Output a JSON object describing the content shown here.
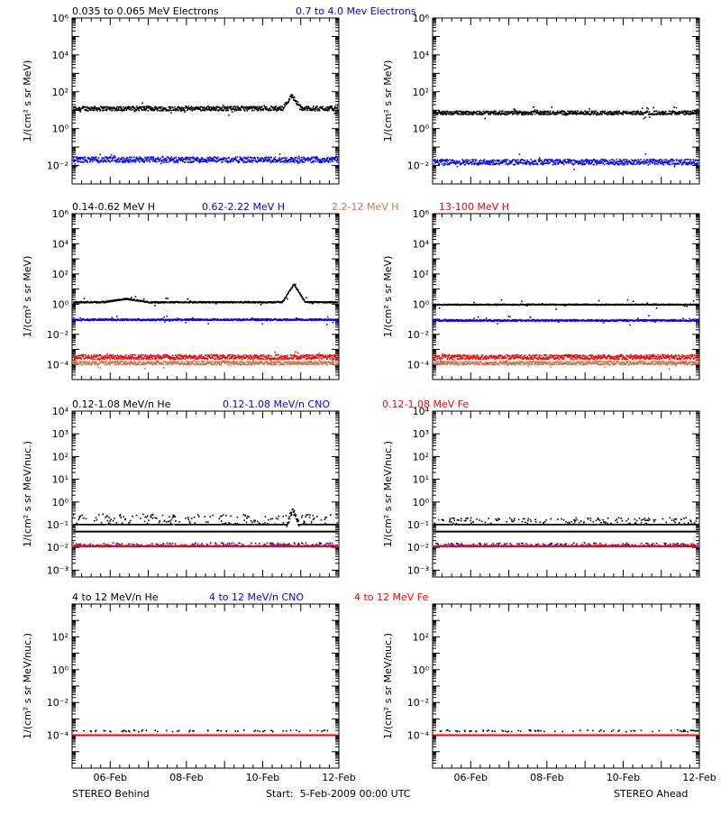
{
  "figure": {
    "footer_left": "STEREO Behind",
    "footer_center": "Start:  5-Feb-2009 00:00 UTC",
    "footer_right": "STEREO Ahead"
  },
  "chart_data": [
    {
      "type": "scatter",
      "panel": "Electrons - STEREO Behind",
      "ylabel": "1/(cm² s sr MeV)",
      "yscale": "log",
      "ylim": [
        0.001,
        1000000
      ],
      "yticks": [
        0.01,
        1,
        100,
        10000,
        1000000
      ],
      "ytick_labels": [
        "10⁻²",
        "10⁰",
        "10²",
        "10⁴",
        "10⁶"
      ],
      "x_range_days": [
        5.0,
        12.0
      ],
      "xticks": [
        "06-Feb",
        "08-Feb",
        "10-Feb",
        "12-Feb"
      ],
      "legend": [
        {
          "name": "0.035 to 0.065 MeV Electrons",
          "color": "#000000"
        },
        {
          "name": "0.7 to 4.0 Mev Electrons",
          "color": "#0000ff"
        }
      ],
      "series": [
        {
          "name": "0.035 to 0.065 MeV Electrons",
          "color": "#000000",
          "baseline": 12,
          "scatter_decades": 0.12,
          "features": [
            {
              "x_start": 10.5,
              "x_end": 11.0,
              "peak": 60
            }
          ]
        },
        {
          "name": "0.7 to 4.0 Mev Electrons",
          "color": "#0000ff",
          "baseline": 0.02,
          "scatter_decades": 0.15,
          "features": []
        }
      ]
    },
    {
      "type": "scatter",
      "panel": "Electrons - STEREO Ahead",
      "ylabel": "1/(cm² s sr MeV)",
      "yscale": "log",
      "ylim": [
        0.001,
        1000000
      ],
      "yticks": [
        0.01,
        1,
        100,
        10000,
        1000000
      ],
      "ytick_labels": [
        "10⁻²",
        "10⁰",
        "10²",
        "10⁴",
        "10⁶"
      ],
      "x_range_days": [
        5.0,
        12.0
      ],
      "xticks": [
        "06-Feb",
        "08-Feb",
        "10-Feb",
        "12-Feb"
      ],
      "legend": [],
      "series": [
        {
          "name": "0.035 to 0.065 MeV Electrons",
          "color": "#000000",
          "baseline": 7,
          "scatter_decades": 0.1,
          "features": []
        },
        {
          "name": "0.7 to 4.0 Mev Electrons",
          "color": "#0000ff",
          "baseline": 0.015,
          "scatter_decades": 0.15,
          "features": []
        }
      ]
    },
    {
      "type": "scatter",
      "panel": "Protons - STEREO Behind",
      "ylabel": "1/(cm² s sr MeV)",
      "yscale": "log",
      "ylim": [
        1e-05,
        1000000
      ],
      "yticks": [
        0.0001,
        0.01,
        1,
        100,
        10000,
        1000000
      ],
      "ytick_labels": [
        "10⁻⁴",
        "10⁻²",
        "10⁰",
        "10²",
        "10⁴",
        "10⁶"
      ],
      "x_range_days": [
        5.0,
        12.0
      ],
      "xticks": [
        "06-Feb",
        "08-Feb",
        "10-Feb",
        "12-Feb"
      ],
      "legend": [
        {
          "name": "0.14-0.62 MeV H",
          "color": "#000000"
        },
        {
          "name": "0.62-2.22 MeV H",
          "color": "#0000ff"
        },
        {
          "name": "2.2-12 MeV H",
          "color": "#c87850"
        },
        {
          "name": "13-100 MeV H",
          "color": "#ff0000"
        }
      ],
      "series": [
        {
          "name": "0.14-0.62 MeV H",
          "color": "#000000",
          "baseline": 1.3,
          "scatter_decades": 0.04,
          "features": [
            {
              "x_start": 5.8,
              "x_end": 7.0,
              "peak": 2.2
            },
            {
              "x_start": 10.5,
              "x_end": 11.1,
              "peak": 20
            }
          ]
        },
        {
          "name": "0.62-2.22 MeV H",
          "color": "#0000ff",
          "baseline": 0.09,
          "scatter_decades": 0.05,
          "features": []
        },
        {
          "name": "2.2-12 MeV H",
          "color": "#c87850",
          "baseline": 0.00012,
          "scatter_decades": 0.12,
          "features": []
        },
        {
          "name": "13-100 MeV H",
          "color": "#ff0000",
          "baseline": 0.0003,
          "scatter_decades": 0.15,
          "features": []
        }
      ]
    },
    {
      "type": "scatter",
      "panel": "Protons - STEREO Ahead",
      "ylabel": "1/(cm² s sr MeV)",
      "yscale": "log",
      "ylim": [
        1e-05,
        1000000
      ],
      "yticks": [
        0.0001,
        0.01,
        1,
        100,
        10000,
        1000000
      ],
      "ytick_labels": [
        "10⁻⁴",
        "10⁻²",
        "10⁰",
        "10²",
        "10⁴",
        "10⁶"
      ],
      "x_range_days": [
        5.0,
        12.0
      ],
      "xticks": [
        "06-Feb",
        "08-Feb",
        "10-Feb",
        "12-Feb"
      ],
      "legend": [],
      "series": [
        {
          "name": "0.14-0.62 MeV H",
          "color": "#000000",
          "baseline": 0.9,
          "scatter_decades": 0.03,
          "features": []
        },
        {
          "name": "0.62-2.22 MeV H",
          "color": "#0000ff",
          "baseline": 0.08,
          "scatter_decades": 0.05,
          "features": []
        },
        {
          "name": "2.2-12 MeV H",
          "color": "#c87850",
          "baseline": 0.00012,
          "scatter_decades": 0.12,
          "features": []
        },
        {
          "name": "13-100 MeV H",
          "color": "#ff0000",
          "baseline": 0.0003,
          "scatter_decades": 0.15,
          "features": []
        }
      ]
    },
    {
      "type": "scatter",
      "panel": "Heavy ions 0.12-1.08 MeV/n - STEREO Behind",
      "ylabel": "1/(cm² s sr MeV/nuc.)",
      "yscale": "log",
      "ylim": [
        0.0005,
        10000
      ],
      "yticks": [
        0.001,
        0.01,
        0.1,
        1,
        10,
        100,
        1000,
        10000
      ],
      "ytick_labels": [
        "10⁻³",
        "10⁻²",
        "10⁻¹",
        "10⁰",
        "10¹",
        "10²",
        "10³",
        "10⁴"
      ],
      "x_range_days": [
        5.0,
        12.0
      ],
      "xticks": [
        "06-Feb",
        "08-Feb",
        "10-Feb",
        "12-Feb"
      ],
      "legend": [
        {
          "name": "0.12-1.08 MeV/n He",
          "color": "#000000"
        },
        {
          "name": "0.12-1.08 MeV/n CNO",
          "color": "#0000ff"
        },
        {
          "name": "0.12-1.08 MeV Fe",
          "color": "#ff0000"
        }
      ],
      "series": [
        {
          "name": "0.12-1.08 MeV/n He",
          "color": "#000000",
          "baseline": 0.1,
          "scatter_decades": 0.15,
          "floor": 0.1,
          "features": [
            {
              "x_start": 10.6,
              "x_end": 10.95,
              "peak": 0.4
            }
          ]
        },
        {
          "name": "0.12-1.08 MeV/n CNO",
          "color": "#0000ff",
          "baseline": 0.011,
          "scatter_decades": 0.05,
          "floor": 0.011,
          "features": []
        },
        {
          "name": "0.12-1.08 MeV Fe",
          "color": "#ff0000",
          "baseline": 0.011,
          "scatter_decades": 0.02,
          "floor": 0.011,
          "features": []
        }
      ],
      "reference_lines": [
        0.05
      ]
    },
    {
      "type": "scatter",
      "panel": "Heavy ions 0.12-1.08 MeV/n - STEREO Ahead",
      "ylabel": "1/(cm² s sr MeV/nuc.)",
      "yscale": "log",
      "ylim": [
        0.0005,
        10000
      ],
      "yticks": [
        0.001,
        0.01,
        0.1,
        1,
        10,
        100,
        1000,
        10000
      ],
      "ytick_labels": [
        "10⁻³",
        "10⁻²",
        "10⁻¹",
        "10⁰",
        "10¹",
        "10²",
        "10³",
        "10⁴"
      ],
      "x_range_days": [
        5.0,
        12.0
      ],
      "xticks": [
        "06-Feb",
        "08-Feb",
        "10-Feb",
        "12-Feb"
      ],
      "legend": [],
      "series": [
        {
          "name": "0.12-1.08 MeV/n He",
          "color": "#000000",
          "baseline": 0.1,
          "scatter_decades": 0.1,
          "floor": 0.1,
          "features": []
        },
        {
          "name": "0.12-1.08 MeV/n CNO",
          "color": "#0000ff",
          "baseline": 0.011,
          "scatter_decades": 0.05,
          "floor": 0.011,
          "features": []
        },
        {
          "name": "0.12-1.08 MeV Fe",
          "color": "#ff0000",
          "baseline": 0.011,
          "scatter_decades": 0.02,
          "floor": 0.011,
          "features": []
        }
      ],
      "reference_lines": [
        0.05
      ]
    },
    {
      "type": "scatter",
      "panel": "Heavy ions 4 to 12 MeV/n - STEREO Behind",
      "ylabel": "1/(cm² s sr MeV/nuc.)",
      "yscale": "log",
      "ylim": [
        1e-06,
        10000
      ],
      "yticks": [
        0.0001,
        0.01,
        1,
        100
      ],
      "ytick_labels": [
        "10⁻⁴",
        "10⁻²",
        "10⁰",
        "10²"
      ],
      "x_range_days": [
        5.0,
        12.0
      ],
      "xticks": [
        "06-Feb",
        "08-Feb",
        "10-Feb",
        "12-Feb"
      ],
      "legend": [
        {
          "name": "4 to 12 MeV/n He",
          "color": "#000000"
        },
        {
          "name": "4 to 12 MeV/n CNO",
          "color": "#0000ff"
        },
        {
          "name": "4 to 12 MeV Fe",
          "color": "#ff0000"
        }
      ],
      "series": [
        {
          "name": "4 to 12 MeV/n He",
          "color": "#000000",
          "baseline": 0.00018,
          "scatter_decades": 0.05,
          "sparse": true,
          "features": []
        },
        {
          "name": "4 to 12 MeV/n CNO",
          "color": "#0000ff",
          "baseline": 0.0001,
          "scatter_decades": 0.0,
          "floor": 0.0001,
          "features": []
        },
        {
          "name": "4 to 12 MeV Fe",
          "color": "#ff0000",
          "baseline": 0.0001,
          "scatter_decades": 0.0,
          "floor": 0.0001,
          "features": []
        }
      ]
    },
    {
      "type": "scatter",
      "panel": "Heavy ions 4 to 12 MeV/n - STEREO Ahead",
      "ylabel": "1/(cm² s sr MeV/nuc.)",
      "yscale": "log",
      "ylim": [
        1e-06,
        10000
      ],
      "yticks": [
        0.0001,
        0.01,
        1,
        100
      ],
      "ytick_labels": [
        "10⁻⁴",
        "10⁻²",
        "10⁰",
        "10²"
      ],
      "x_range_days": [
        5.0,
        12.0
      ],
      "xticks": [
        "06-Feb",
        "08-Feb",
        "10-Feb",
        "12-Feb"
      ],
      "legend": [],
      "series": [
        {
          "name": "4 to 12 MeV/n He",
          "color": "#000000",
          "baseline": 0.00018,
          "scatter_decades": 0.05,
          "sparse": true,
          "features": []
        },
        {
          "name": "4 to 12 MeV/n CNO",
          "color": "#0000ff",
          "baseline": 0.0001,
          "scatter_decades": 0.0,
          "floor": 0.0001,
          "features": []
        },
        {
          "name": "4 to 12 MeV Fe",
          "color": "#ff0000",
          "baseline": 0.0001,
          "scatter_decades": 0.0,
          "floor": 0.0001,
          "features": []
        }
      ]
    }
  ]
}
